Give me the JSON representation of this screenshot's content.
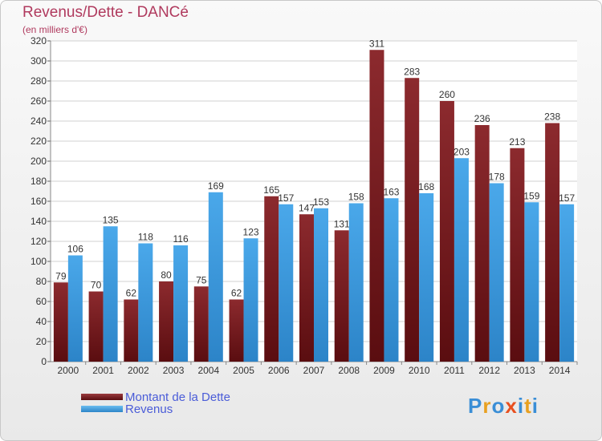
{
  "chart_title": "Revenus/Dette - DANCé",
  "chart_subtitle": "(en milliers d'€)",
  "logo_text": "Proxiti",
  "colors": {
    "dette": "#7a1a1e",
    "revenus": "#3c9be0",
    "grid": "#d2d2d2",
    "axis_text": "#333333",
    "title": "#b03a5e",
    "legend_text": "#4a5cd8"
  },
  "chart_data": {
    "type": "bar",
    "title": "Revenus/Dette - DANCé",
    "subtitle": "(en milliers d'€)",
    "categories": [
      "2000",
      "2001",
      "2002",
      "2003",
      "2004",
      "2005",
      "2006",
      "2007",
      "2008",
      "2009",
      "2010",
      "2011",
      "2012",
      "2013",
      "2014"
    ],
    "series": [
      {
        "name": "Montant de la Dette",
        "values": [
          79,
          70,
          62,
          80,
          75,
          62,
          165,
          147,
          131,
          311,
          283,
          260,
          236,
          213,
          238
        ]
      },
      {
        "name": "Revenus",
        "values": [
          106,
          135,
          118,
          116,
          169,
          123,
          157,
          153,
          158,
          163,
          168,
          203,
          178,
          159,
          157
        ]
      }
    ],
    "ylim": [
      0,
      320
    ],
    "ytick_step": 20,
    "grid": true,
    "legend": "bottom-left"
  }
}
